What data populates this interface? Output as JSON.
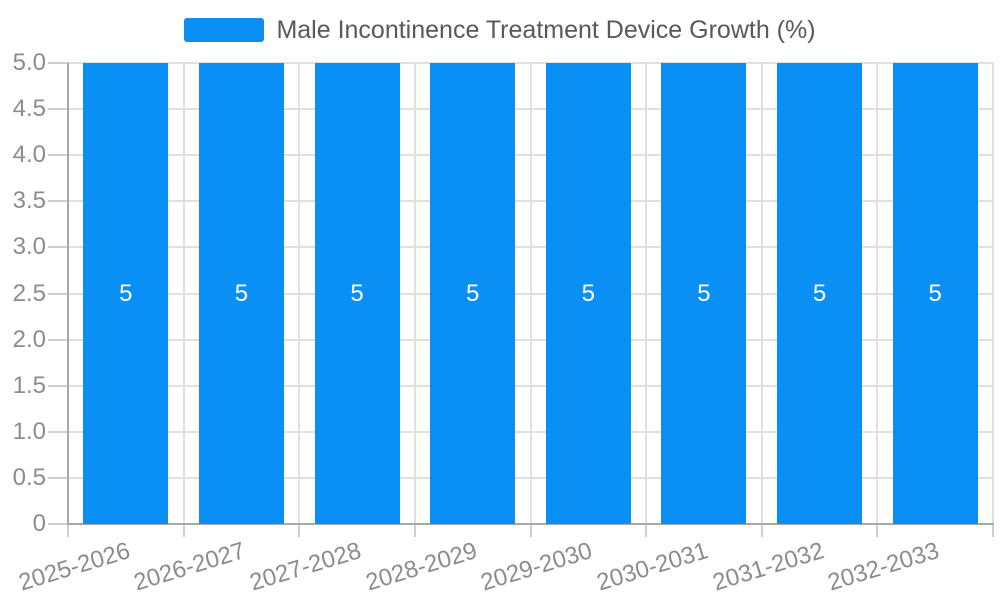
{
  "chart_data": {
    "type": "bar",
    "title": "Male Incontinence Treatment Device Growth (%)",
    "categories": [
      "2025-2026",
      "2026-2027",
      "2027-2028",
      "2028-2029",
      "2029-2030",
      "2030-2031",
      "2031-2032",
      "2032-2033"
    ],
    "values": [
      5,
      5,
      5,
      5,
      5,
      5,
      5,
      5
    ],
    "bar_value_labels": [
      "5",
      "5",
      "5",
      "5",
      "5",
      "5",
      "5",
      "5"
    ],
    "xlabel": "",
    "ylabel": "",
    "ylim": [
      0,
      5
    ],
    "ytick_labels": [
      "0",
      "0.5",
      "1.0",
      "1.5",
      "2.0",
      "2.5",
      "3.0",
      "3.5",
      "4.0",
      "4.5",
      "5.0"
    ],
    "grid": true,
    "legend_position": "top-center",
    "x_label_rotation_deg": -17,
    "colors": {
      "bar": "#0A8FF5",
      "grid": "#E0E0E0",
      "tick": "#CFCFCF",
      "axis": "#A8A8A8",
      "axis_label": "#8C8C8C",
      "legend_text": "#58595B",
      "bar_label": "#FFFFFF",
      "background": "#FFFFFF"
    }
  }
}
